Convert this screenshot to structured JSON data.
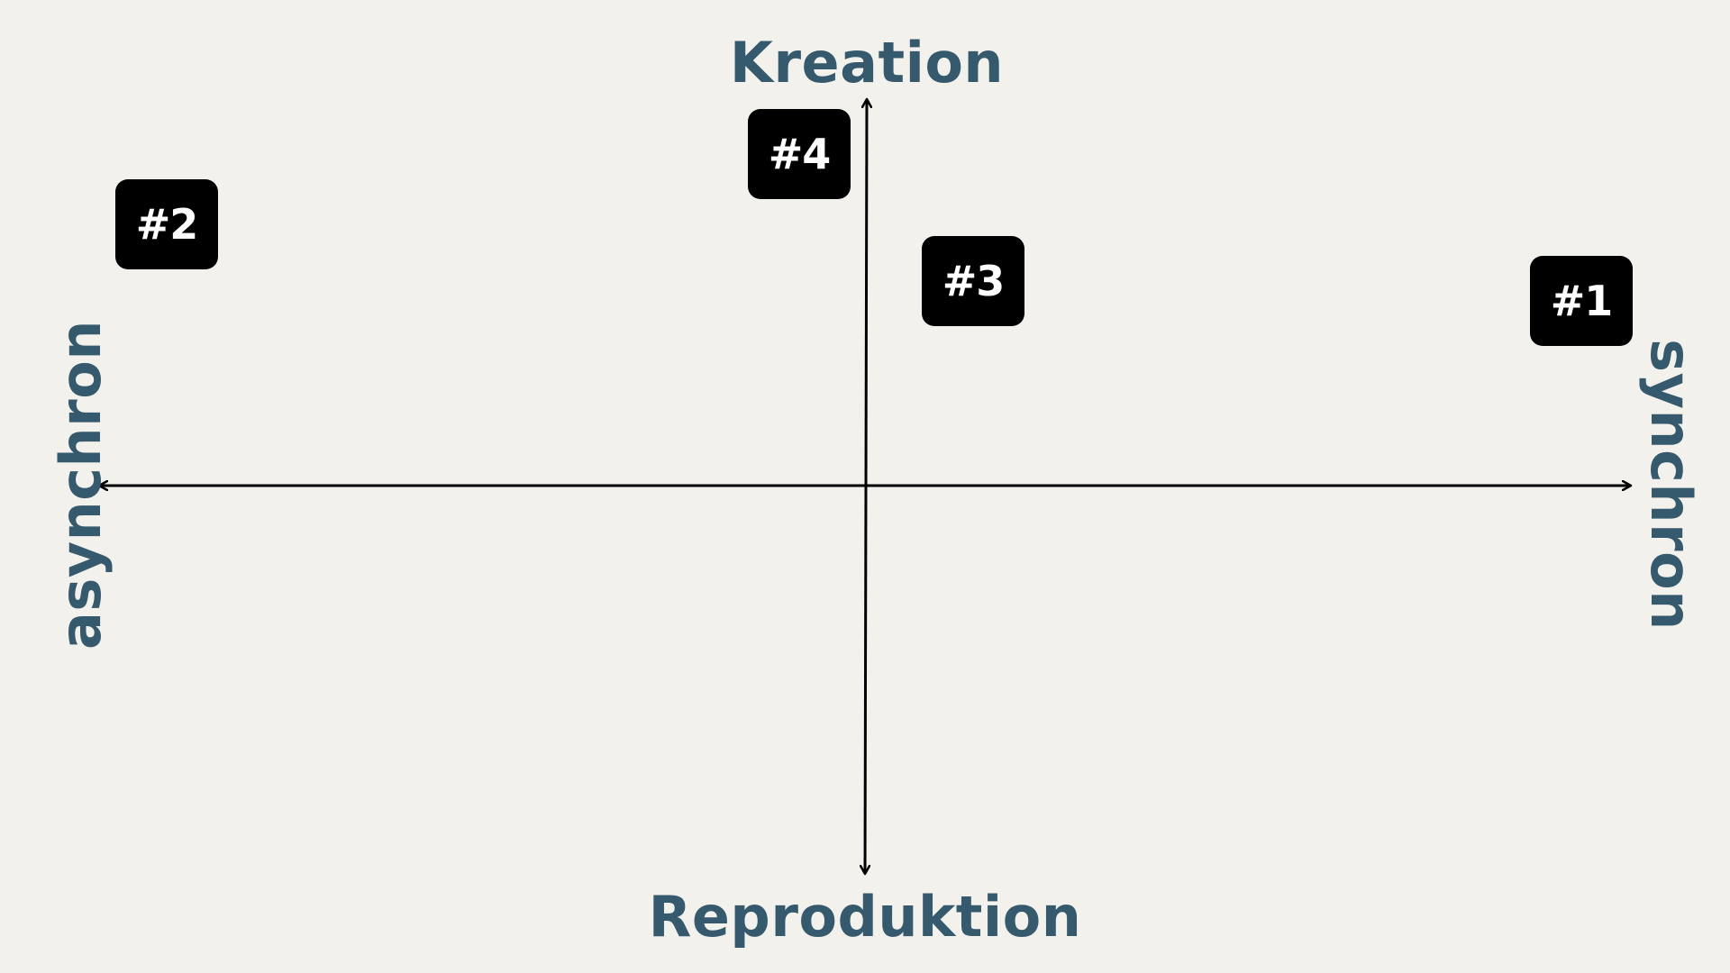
{
  "axes": {
    "top_label": "Kreation",
    "bottom_label": "Reproduktion",
    "left_label": "asynchron",
    "right_label": "synchron"
  },
  "markers": [
    {
      "label": "#1"
    },
    {
      "label": "#2"
    },
    {
      "label": "#3"
    },
    {
      "label": "#4"
    }
  ],
  "colors": {
    "background": "#f2f1ec",
    "axis_label": "#365a6d",
    "axis_line": "#000000",
    "marker_fill": "#000000",
    "marker_text": "#ffffff"
  }
}
